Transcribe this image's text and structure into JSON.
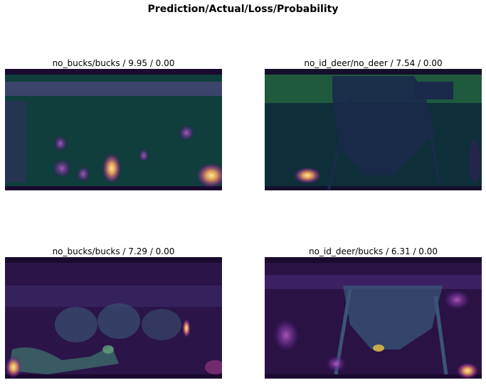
{
  "figure": {
    "title": "Prediction/Actual/Loss/Probability"
  },
  "panels": [
    {
      "label": "no_bucks/bucks / 9.95 / 0.00"
    },
    {
      "label": "no_id_deer/no_deer / 7.54 / 0.00"
    },
    {
      "label": "no_bucks/bucks / 7.29 / 0.00"
    },
    {
      "label": "no_id_deer/bucks / 6.31 / 0.00"
    }
  ]
}
